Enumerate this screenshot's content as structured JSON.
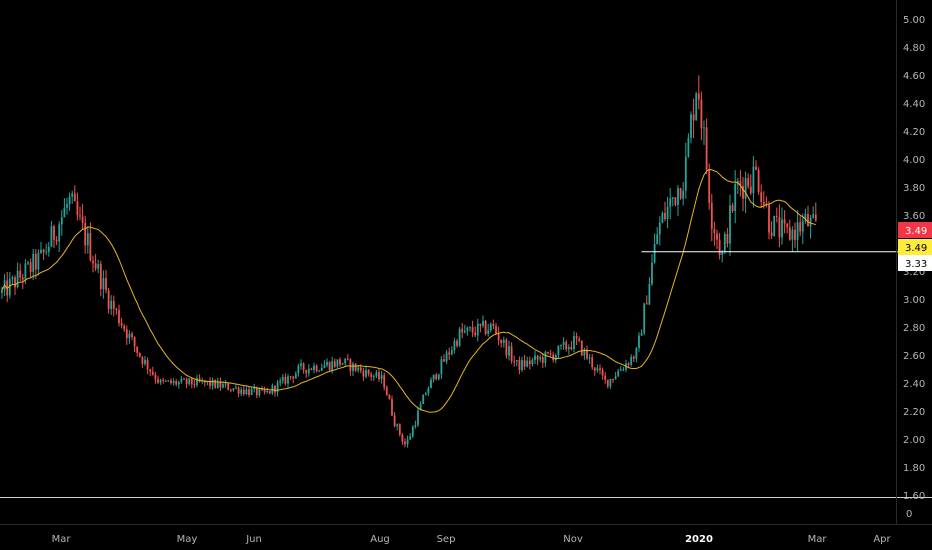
{
  "chart_data": {
    "type": "candlestick",
    "x_ticks": [
      "Mar",
      "May",
      "Jun",
      "Aug",
      "Sep",
      "Nov",
      "2020",
      "Mar",
      "Apr"
    ],
    "y_ticks": [
      "5.00",
      "4.80",
      "4.60",
      "4.40",
      "4.20",
      "4.00",
      "3.80",
      "3.60",
      "3.40",
      "3.20",
      "3.00",
      "2.80",
      "2.60",
      "2.40",
      "2.20",
      "2.00",
      "1.80",
      "1.60"
    ],
    "ylim": [
      1.6,
      5.0
    ],
    "lower_pane_ticks": [
      "0"
    ],
    "price_labels": [
      {
        "text": "3.49",
        "color": "#f23645",
        "value": 3.49
      },
      {
        "text": "3.49",
        "color": "#ffeb3b",
        "value": 3.49
      },
      {
        "text": "3.33",
        "color": "#ffffff",
        "value": 3.33
      }
    ],
    "horizontal_line": {
      "value": 3.33,
      "color": "#ffffff"
    },
    "moving_average": {
      "color": "#e6b422"
    },
    "key_points": [
      {
        "x": "2019-01-14",
        "y": 2.85
      },
      {
        "x": "2019-02-01",
        "y": 3.05
      },
      {
        "x": "2019-02-20",
        "y": 3.3
      },
      {
        "x": "2019-03-05",
        "y": 3.7
      },
      {
        "x": "2019-03-14",
        "y": 3.4
      },
      {
        "x": "2019-03-24",
        "y": 3.0
      },
      {
        "x": "2019-04-08",
        "y": 2.6
      },
      {
        "x": "2019-04-18",
        "y": 2.4
      },
      {
        "x": "2019-05-10",
        "y": 2.4
      },
      {
        "x": "2019-06-08",
        "y": 2.32
      },
      {
        "x": "2019-06-25",
        "y": 2.5
      },
      {
        "x": "2019-07-15",
        "y": 2.55
      },
      {
        "x": "2019-08-04",
        "y": 2.42
      },
      {
        "x": "2019-08-10",
        "y": 2.1
      },
      {
        "x": "2019-08-15",
        "y": 1.95
      },
      {
        "x": "2019-08-25",
        "y": 2.35
      },
      {
        "x": "2019-09-10",
        "y": 2.75
      },
      {
        "x": "2019-09-26",
        "y": 2.8
      },
      {
        "x": "2019-10-08",
        "y": 2.52
      },
      {
        "x": "2019-10-25",
        "y": 2.6
      },
      {
        "x": "2019-11-05",
        "y": 2.7
      },
      {
        "x": "2019-11-20",
        "y": 2.4
      },
      {
        "x": "2019-12-05",
        "y": 2.62
      },
      {
        "x": "2019-12-15",
        "y": 3.5
      },
      {
        "x": "2019-12-28",
        "y": 3.9
      },
      {
        "x": "2020-01-03",
        "y": 4.6
      },
      {
        "x": "2020-01-10",
        "y": 3.6
      },
      {
        "x": "2020-01-15",
        "y": 3.3
      },
      {
        "x": "2020-01-22",
        "y": 3.8
      },
      {
        "x": "2020-02-01",
        "y": 3.9
      },
      {
        "x": "2020-02-07",
        "y": 3.55
      },
      {
        "x": "2020-02-15",
        "y": 3.45
      },
      {
        "x": "2020-02-25",
        "y": 3.55
      },
      {
        "x": "2020-03-01",
        "y": 3.49
      }
    ]
  }
}
